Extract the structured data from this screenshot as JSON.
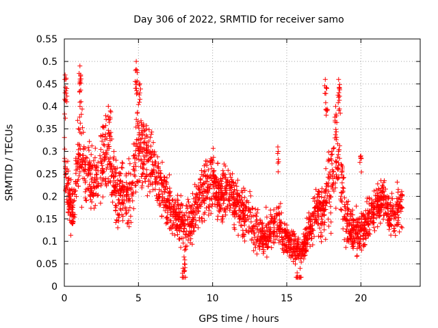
{
  "chart_data": {
    "type": "scatter",
    "title": "Day 306 of 2022, SRMTID for receiver samo",
    "xlabel": "GPS time / hours",
    "ylabel": "SRMTID / TECUs",
    "xlim": [
      0,
      24
    ],
    "ylim": [
      0,
      0.55
    ],
    "xticks": [
      0,
      5,
      10,
      15,
      20
    ],
    "xtick_labels": [
      "0",
      "5",
      "10",
      "15",
      "20"
    ],
    "yticks": [
      0,
      0.05,
      0.1,
      0.15,
      0.2,
      0.25,
      0.3,
      0.35,
      0.4,
      0.45,
      0.5,
      0.55
    ],
    "ytick_labels": [
      "0",
      "0.05",
      "0.1",
      "0.15",
      "0.2",
      "0.25",
      "0.3",
      "0.35",
      "0.4",
      "0.45",
      "0.5",
      "0.55"
    ],
    "grid": true,
    "marker": "+",
    "color": "#ff0000",
    "series_trend": {
      "name": "SRMTID",
      "x": [
        0,
        0.3,
        0.6,
        1,
        1.5,
        2,
        2.5,
        3,
        3.5,
        4,
        4.5,
        5,
        5.5,
        6,
        6.5,
        7,
        7.5,
        8,
        8.5,
        9,
        9.5,
        10,
        10.5,
        11,
        11.5,
        12,
        12.5,
        13,
        13.5,
        14,
        14.5,
        15,
        15.5,
        16,
        16.5,
        17,
        17.5,
        18,
        18.5,
        19,
        19.5,
        20,
        20.5,
        21,
        21.5,
        22,
        22.5,
        22.8
      ],
      "center": [
        0.3,
        0.2,
        0.16,
        0.3,
        0.26,
        0.23,
        0.28,
        0.3,
        0.2,
        0.21,
        0.2,
        0.32,
        0.29,
        0.26,
        0.22,
        0.18,
        0.16,
        0.13,
        0.14,
        0.19,
        0.22,
        0.24,
        0.2,
        0.21,
        0.18,
        0.17,
        0.15,
        0.12,
        0.11,
        0.13,
        0.14,
        0.1,
        0.09,
        0.08,
        0.12,
        0.17,
        0.16,
        0.25,
        0.28,
        0.15,
        0.12,
        0.12,
        0.15,
        0.18,
        0.19,
        0.16,
        0.17,
        0.18
      ],
      "spread": [
        0.09,
        0.05,
        0.05,
        0.09,
        0.07,
        0.06,
        0.07,
        0.08,
        0.06,
        0.05,
        0.06,
        0.09,
        0.07,
        0.06,
        0.05,
        0.05,
        0.05,
        0.05,
        0.05,
        0.05,
        0.06,
        0.06,
        0.05,
        0.05,
        0.05,
        0.05,
        0.05,
        0.04,
        0.04,
        0.05,
        0.04,
        0.03,
        0.03,
        0.03,
        0.04,
        0.05,
        0.06,
        0.1,
        0.1,
        0.05,
        0.04,
        0.04,
        0.04,
        0.04,
        0.04,
        0.04,
        0.05,
        0.04
      ]
    },
    "peaks": [
      {
        "x": 0.05,
        "y": 0.47
      },
      {
        "x": 0.1,
        "y": 0.46
      },
      {
        "x": 1.05,
        "y": 0.49
      },
      {
        "x": 1.1,
        "y": 0.47
      },
      {
        "x": 3.1,
        "y": 0.39
      },
      {
        "x": 4.85,
        "y": 0.5
      },
      {
        "x": 4.9,
        "y": 0.48
      },
      {
        "x": 5.1,
        "y": 0.45
      },
      {
        "x": 17.6,
        "y": 0.46
      },
      {
        "x": 17.7,
        "y": 0.44
      },
      {
        "x": 18.5,
        "y": 0.46
      },
      {
        "x": 18.55,
        "y": 0.44
      },
      {
        "x": 18.3,
        "y": 0.4
      },
      {
        "x": 15.7,
        "y": 0.03
      },
      {
        "x": 15.9,
        "y": 0.04
      },
      {
        "x": 8,
        "y": 0.04
      },
      {
        "x": 8.1,
        "y": 0.05
      },
      {
        "x": 14.4,
        "y": 0.31
      },
      {
        "x": 20,
        "y": 0.29
      }
    ]
  }
}
